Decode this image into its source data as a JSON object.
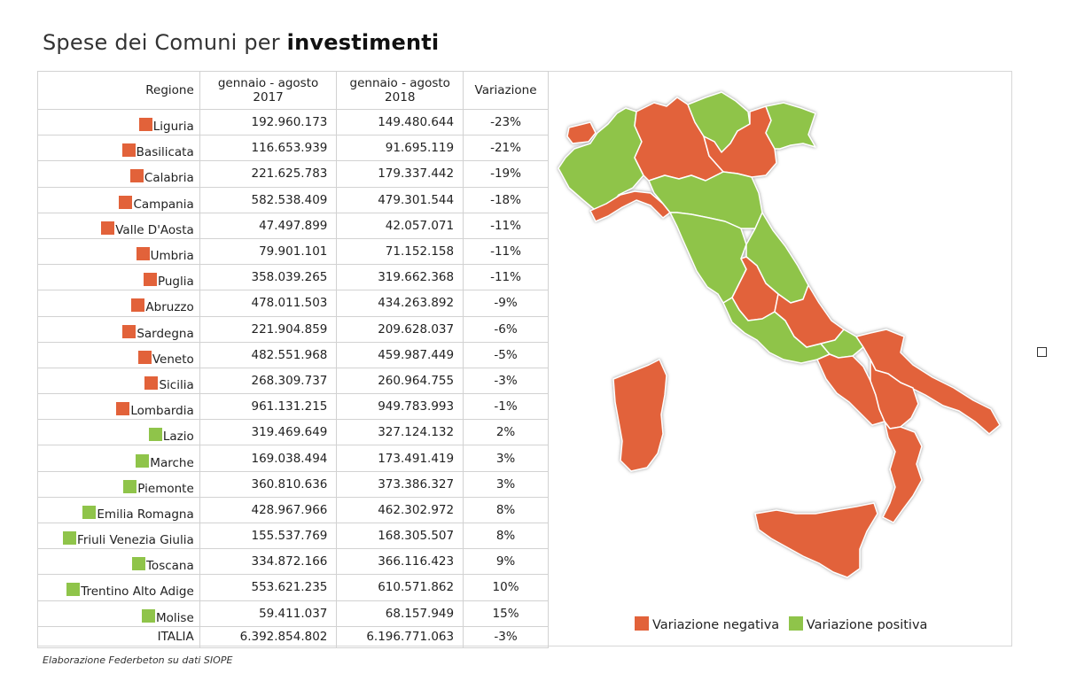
{
  "title": {
    "prefix": "Spese dei Comuni per ",
    "bold": "investimenti"
  },
  "table": {
    "headers": {
      "regione": "Regione",
      "col2017_line1": "gennaio - agosto",
      "col2017_line2": "2017",
      "col2018_line1": "gennaio - agosto",
      "col2018_line2": "2018",
      "variazione": "Variazione"
    },
    "rows": [
      {
        "regione": "Liguria",
        "v2017": "192.960.173",
        "v2018": "149.480.644",
        "var": "-23%",
        "sign": "neg"
      },
      {
        "regione": "Basilicata",
        "v2017": "116.653.939",
        "v2018": "91.695.119",
        "var": "-21%",
        "sign": "neg"
      },
      {
        "regione": "Calabria",
        "v2017": "221.625.783",
        "v2018": "179.337.442",
        "var": "-19%",
        "sign": "neg"
      },
      {
        "regione": "Campania",
        "v2017": "582.538.409",
        "v2018": "479.301.544",
        "var": "-18%",
        "sign": "neg"
      },
      {
        "regione": "Valle D'Aosta",
        "v2017": "47.497.899",
        "v2018": "42.057.071",
        "var": "-11%",
        "sign": "neg"
      },
      {
        "regione": "Umbria",
        "v2017": "79.901.101",
        "v2018": "71.152.158",
        "var": "-11%",
        "sign": "neg"
      },
      {
        "regione": "Puglia",
        "v2017": "358.039.265",
        "v2018": "319.662.368",
        "var": "-11%",
        "sign": "neg"
      },
      {
        "regione": "Abruzzo",
        "v2017": "478.011.503",
        "v2018": "434.263.892",
        "var": "-9%",
        "sign": "neg"
      },
      {
        "regione": "Sardegna",
        "v2017": "221.904.859",
        "v2018": "209.628.037",
        "var": "-6%",
        "sign": "neg"
      },
      {
        "regione": "Veneto",
        "v2017": "482.551.968",
        "v2018": "459.987.449",
        "var": "-5%",
        "sign": "neg"
      },
      {
        "regione": "Sicilia",
        "v2017": "268.309.737",
        "v2018": "260.964.755",
        "var": "-3%",
        "sign": "neg"
      },
      {
        "regione": "Lombardia",
        "v2017": "961.131.215",
        "v2018": "949.783.993",
        "var": "-1%",
        "sign": "neg"
      },
      {
        "regione": "Lazio",
        "v2017": "319.469.649",
        "v2018": "327.124.132",
        "var": "2%",
        "sign": "pos"
      },
      {
        "regione": "Marche",
        "v2017": "169.038.494",
        "v2018": "173.491.419",
        "var": "3%",
        "sign": "pos"
      },
      {
        "regione": "Piemonte",
        "v2017": "360.810.636",
        "v2018": "373.386.327",
        "var": "3%",
        "sign": "pos"
      },
      {
        "regione": "Emilia Romagna",
        "v2017": "428.967.966",
        "v2018": "462.302.972",
        "var": "8%",
        "sign": "pos"
      },
      {
        "regione": "Friuli Venezia Giulia",
        "v2017": "155.537.769",
        "v2018": "168.305.507",
        "var": "8%",
        "sign": "pos"
      },
      {
        "regione": "Toscana",
        "v2017": "334.872.166",
        "v2018": "366.116.423",
        "var": "9%",
        "sign": "pos"
      },
      {
        "regione": "Trentino Alto Adige",
        "v2017": "553.621.235",
        "v2018": "610.571.862",
        "var": "10%",
        "sign": "pos"
      },
      {
        "regione": "Molise",
        "v2017": "59.411.037",
        "v2018": "68.157.949",
        "var": "15%",
        "sign": "pos"
      }
    ],
    "total": {
      "regione": "ITALIA",
      "v2017": "6.392.854.802",
      "v2018": "6.196.771.063",
      "var": "-3%"
    }
  },
  "legend": {
    "negative": "Variazione negativa",
    "positive": "Variazione positiva"
  },
  "colors": {
    "negative": "#e2623a",
    "positive": "#8fc44a",
    "border": "#d2d2d2"
  },
  "source": "Elaborazione Federbeton su dati SIOPE"
}
